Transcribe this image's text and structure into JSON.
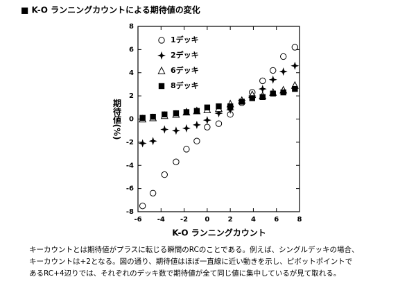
{
  "chart_data": {
    "type": "scatter",
    "title": "■ K-O ランニングカウントによる期待値の変化",
    "xlabel": "K-O ランニングカウント",
    "ylabel": "期待値(%)",
    "x": [
      -5.6,
      -4.7,
      -3.7,
      -2.7,
      -1.8,
      -0.9,
      0,
      1,
      2,
      3,
      3.9,
      4.8,
      5.7,
      6.6,
      7.6
    ],
    "series": [
      {
        "name": "1デッキ",
        "color": "#000000",
        "marker": "circle-open",
        "values": [
          -7.5,
          -6.4,
          -4.8,
          -3.7,
          -2.6,
          -1.9,
          -0.7,
          -0.4,
          0.4,
          1.4,
          2.3,
          3.3,
          4.2,
          5.4,
          6.2
        ]
      },
      {
        "name": "2デッキ",
        "color": "#000000",
        "marker": "star",
        "values": [
          -2.1,
          -1.9,
          -0.9,
          -1.0,
          -0.8,
          -0.5,
          -0.1,
          0.5,
          0.8,
          1.6,
          2.0,
          2.6,
          3.4,
          4.1,
          4.6
        ]
      },
      {
        "name": "6デッキ",
        "color": "#000000",
        "marker": "triangle-open",
        "values": [
          0.0,
          0.1,
          0.3,
          0.4,
          0.6,
          0.7,
          0.8,
          0.9,
          1.3,
          1.6,
          2.1,
          2.0,
          2.3,
          2.5,
          2.9
        ]
      },
      {
        "name": "8デッキ",
        "color": "#000000",
        "marker": "square",
        "values": [
          0.1,
          0.2,
          0.4,
          0.5,
          0.6,
          0.7,
          1.0,
          1.1,
          1.1,
          1.5,
          1.8,
          1.9,
          2.2,
          2.3,
          2.6
        ]
      }
    ],
    "xlim": [
      -6,
      8
    ],
    "xticks": [
      -6,
      -4,
      -2,
      0,
      2,
      4,
      6,
      8
    ],
    "ylim": [
      -8,
      8
    ],
    "yticks": [
      -8,
      -6,
      -4,
      -2,
      0,
      2,
      4,
      6,
      8
    ],
    "grid": false,
    "legend": "upper-left",
    "caption": [
      "キーカウントとは期待値がプラスに転じる瞬間のRCのことである。例えば、シングルデッキの場合、",
      "キーカウントは+2となる。図の通り、期待値はほぼ一直線に近い動きを示し、ピボットポイントで",
      "あるRC+4辺りでは、それぞれのデッキ数で期待値が全て同じ値に集中しているが見て取れる。"
    ]
  }
}
